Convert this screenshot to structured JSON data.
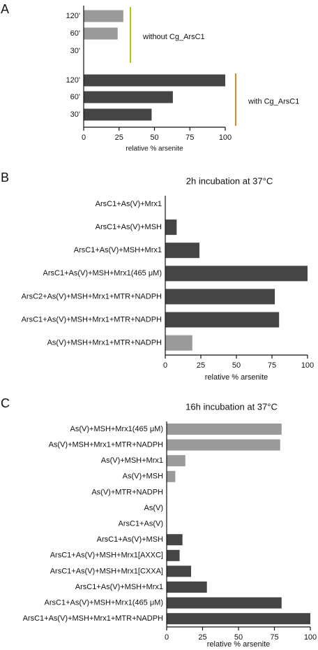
{
  "chart_data": [
    {
      "type": "bar",
      "panel_label": "A",
      "xlabel": "relative % arsenite",
      "groups": [
        {
          "label": "without Cg_ArsC1",
          "bracket_color": "#b5c400",
          "color": "#9a9a9a",
          "categories": [
            "120'",
            "60'",
            "30'"
          ],
          "values": [
            28,
            24,
            0
          ]
        },
        {
          "label": "with Cg_ArsC1",
          "bracket_color": "#e08a1e",
          "color": "#454545",
          "categories": [
            "120'",
            "60'",
            "30'"
          ],
          "values": [
            100,
            63,
            48
          ]
        }
      ],
      "xlim": [
        0,
        100
      ],
      "xticks": [
        0,
        25,
        50,
        75,
        100
      ]
    },
    {
      "type": "bar",
      "panel_label": "B",
      "title": "2h incubation at 37°C",
      "xlabel": "relative % arsenite",
      "categories": [
        "ArsC1+As(V)+Mrx1",
        "ArsC1+As(V)+MSH",
        "ArsC1+As(V)+MSH+Mrx1",
        "ArsC1+As(V)+MSH+Mrx1(465 μM)",
        "ArsC2+As(V)+MSH+Mrx1+MTR+NADPH",
        "ArsC1+As(V)+MSH+Mrx1+MTR+NADPH",
        "As(V)+MSH+Mrx1+MTR+NADPH"
      ],
      "values": [
        0,
        8,
        24,
        100,
        77,
        80,
        19
      ],
      "colors": [
        "#454545",
        "#454545",
        "#454545",
        "#454545",
        "#454545",
        "#454545",
        "#9a9a9a"
      ],
      "xlim": [
        0,
        100
      ],
      "xticks": [
        0,
        25,
        50,
        75,
        100
      ]
    },
    {
      "type": "bar",
      "panel_label": "C",
      "title": "16h incubation at 37°C",
      "xlabel": "relative % arsenite",
      "categories": [
        "As(V)+MSH+Mrx1(465 μM)",
        "As(V)+MSH+Mrx1+MTR+NADPH",
        "As(V)+MSH+Mrx1",
        "As(V)+MSH",
        "As(V)+MTR+NADPH",
        "As(V)",
        "ArsC1+As(V)",
        "ArsC1+As(V)+MSH",
        "ArsC1+As(V)+MSH+Mrx1[AXXC]",
        "ArsC1+As(V)+MSH+Mrx1[CXXA]",
        "ArsC1+As(V)+MSH+Mrx1",
        "ArsC1+As(V)+MSH+Mrx1(465 μM)",
        "ArsC1+As(V)+MSH+Mrx1+MTR+NADPH"
      ],
      "values": [
        80,
        79,
        13,
        6,
        0,
        0,
        0,
        11,
        9,
        17,
        28,
        80,
        100
      ],
      "colors": [
        "#9a9a9a",
        "#9a9a9a",
        "#9a9a9a",
        "#9a9a9a",
        "#9a9a9a",
        "#9a9a9a",
        "#454545",
        "#454545",
        "#454545",
        "#454545",
        "#454545",
        "#454545",
        "#454545"
      ],
      "xlim": [
        0,
        100
      ],
      "xticks": [
        0,
        25,
        50,
        75,
        100
      ]
    }
  ]
}
